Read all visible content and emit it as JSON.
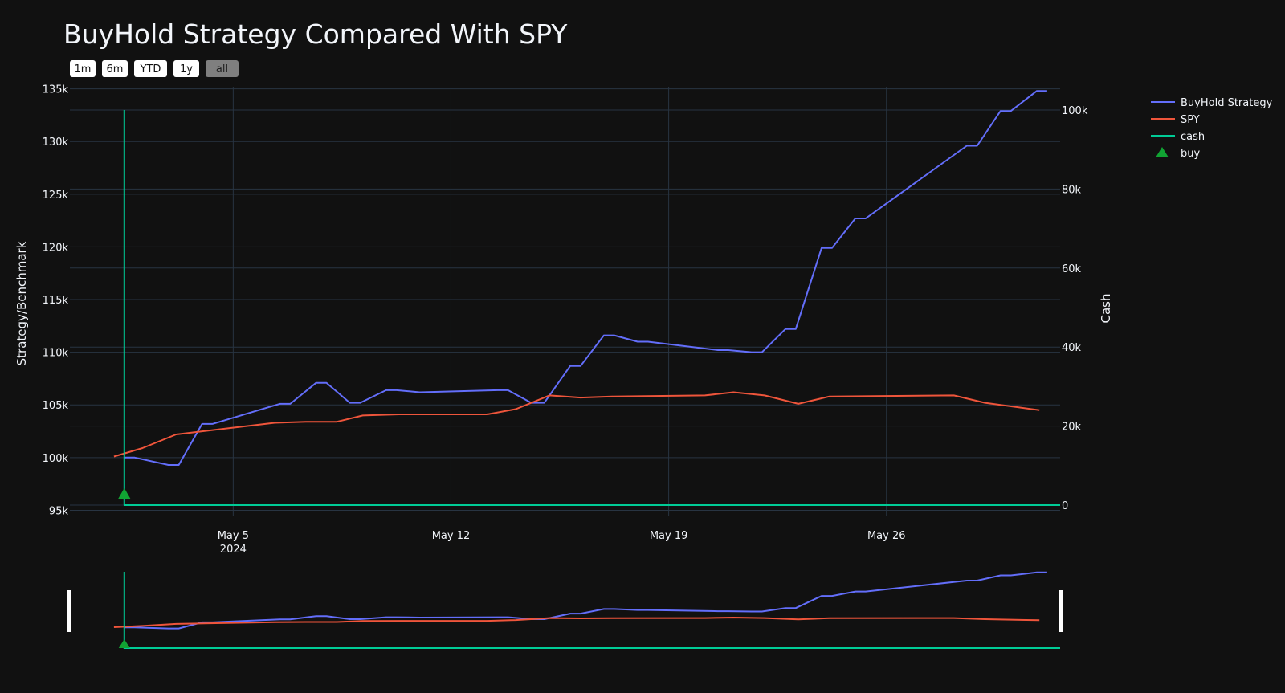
{
  "chart_data": {
    "type": "line",
    "title": "BuyHold Strategy Compared With SPY",
    "range_buttons": [
      {
        "label": "1m",
        "active": false
      },
      {
        "label": "6m",
        "active": false
      },
      {
        "label": "YTD",
        "active": false
      },
      {
        "label": "1y",
        "active": false
      },
      {
        "label": "all",
        "active": true
      }
    ],
    "ylabel": "Strategy/Benchmark",
    "y2label": "Cash",
    "ylim": [
      94500,
      135200
    ],
    "y2lim": [
      0,
      100000
    ],
    "y_ticks": [
      {
        "v": 95000,
        "label": "95k"
      },
      {
        "v": 100000,
        "label": "100k"
      },
      {
        "v": 105000,
        "label": "105k"
      },
      {
        "v": 110000,
        "label": "110k"
      },
      {
        "v": 115000,
        "label": "115k"
      },
      {
        "v": 120000,
        "label": "120k"
      },
      {
        "v": 125000,
        "label": "125k"
      },
      {
        "v": 130000,
        "label": "130k"
      },
      {
        "v": 135000,
        "label": "135k"
      }
    ],
    "y2_ticks": [
      {
        "v": 0,
        "label": "0"
      },
      {
        "v": 20000,
        "label": "20k"
      },
      {
        "v": 40000,
        "label": "40k"
      },
      {
        "v": 60000,
        "label": "60k"
      },
      {
        "v": 80000,
        "label": "80k"
      },
      {
        "v": 100000,
        "label": "100k"
      }
    ],
    "xlim": [
      "2024-04-29T18:00",
      "2024-05-31T14:00"
    ],
    "x_ticks": [
      {
        "date": "2024-05-05",
        "label": "May 5",
        "sublabel": "2024"
      },
      {
        "date": "2024-05-12",
        "label": "May 12",
        "sublabel": ""
      },
      {
        "date": "2024-05-19",
        "label": "May 19",
        "sublabel": ""
      },
      {
        "date": "2024-05-26",
        "label": "May 26",
        "sublabel": ""
      }
    ],
    "series": [
      {
        "name": "BuyHold Strategy",
        "color": "#636efa",
        "axis": "y",
        "x": [
          "2024-05-01T12:00",
          "2024-05-01T20:00",
          "2024-05-02T22:00",
          "2024-05-03T06:00",
          "2024-05-04T00:00",
          "2024-05-04T08:00",
          "2024-05-06T12:00",
          "2024-05-06T20:00",
          "2024-05-07T16:00",
          "2024-05-08T00:00",
          "2024-05-08T18:00",
          "2024-05-09T02:00",
          "2024-05-09T22:00",
          "2024-05-10T06:00",
          "2024-05-11T00:00",
          "2024-05-13T12:00",
          "2024-05-13T20:00",
          "2024-05-14T14:00",
          "2024-05-15T00:00",
          "2024-05-15T20:00",
          "2024-05-16T04:00",
          "2024-05-16T22:00",
          "2024-05-17T06:00",
          "2024-05-18T00:00",
          "2024-05-18T08:00",
          "2024-05-20T14:00",
          "2024-05-20T22:00",
          "2024-05-21T16:00",
          "2024-05-22T00:00",
          "2024-05-22T18:00",
          "2024-05-23T02:00",
          "2024-05-23T22:00",
          "2024-05-24T06:00",
          "2024-05-25T00:00",
          "2024-05-25T08:00",
          "2024-05-28T14:00",
          "2024-05-28T22:00",
          "2024-05-29T16:00",
          "2024-05-30T00:00",
          "2024-05-30T20:00",
          "2024-05-31T04:00"
        ],
        "values": [
          100000,
          100000,
          99300,
          99300,
          103200,
          103200,
          105100,
          105100,
          107100,
          107100,
          105200,
          105200,
          106400,
          106400,
          106200,
          106400,
          106400,
          105200,
          105200,
          108700,
          108700,
          111600,
          111600,
          111000,
          111000,
          110200,
          110200,
          110000,
          110000,
          112200,
          112200,
          119900,
          119900,
          122700,
          122700,
          129600,
          129600,
          132900,
          132900,
          134800,
          134800
        ]
      },
      {
        "name": "SPY",
        "color": "#ef553b",
        "axis": "y",
        "x": [
          "2024-05-01T04:00",
          "2024-05-02T02:00",
          "2024-05-03T04:00",
          "2024-05-06T08:00",
          "2024-05-07T08:00",
          "2024-05-08T08:00",
          "2024-05-09T04:00",
          "2024-05-10T08:00",
          "2024-05-13T04:00",
          "2024-05-14T02:00",
          "2024-05-15T04:00",
          "2024-05-16T04:00",
          "2024-05-17T04:00",
          "2024-05-20T04:00",
          "2024-05-21T02:00",
          "2024-05-22T02:00",
          "2024-05-23T04:00",
          "2024-05-24T04:00",
          "2024-05-28T04:00",
          "2024-05-29T04:00",
          "2024-05-30T22:00"
        ],
        "values": [
          100100,
          100900,
          102200,
          103300,
          103400,
          103400,
          104000,
          104100,
          104100,
          104600,
          105900,
          105700,
          105800,
          105900,
          106200,
          105900,
          105100,
          105800,
          105900,
          105200,
          104500
        ]
      },
      {
        "name": "cash",
        "color": "#00cc96",
        "axis": "y2",
        "x": [
          "2024-05-01T12:00",
          "2024-05-01T12:00",
          "2024-05-31T14:00"
        ],
        "values": [
          100000,
          0,
          0
        ]
      }
    ],
    "markers": [
      {
        "name": "buy",
        "color": "#11a333",
        "symbol": "triangle-up",
        "x": "2024-05-01T12:00",
        "value": 96500
      }
    ],
    "legend": {
      "placement": "top-right",
      "items": [
        {
          "label": "BuyHold Strategy",
          "color": "#636efa",
          "kind": "line"
        },
        {
          "label": "SPY",
          "color": "#ef553b",
          "kind": "line"
        },
        {
          "label": "cash",
          "color": "#00cc96",
          "kind": "line"
        },
        {
          "label": "buy",
          "color": "#11a333",
          "kind": "triangle"
        }
      ]
    },
    "rangeslider": true,
    "grid": true
  }
}
